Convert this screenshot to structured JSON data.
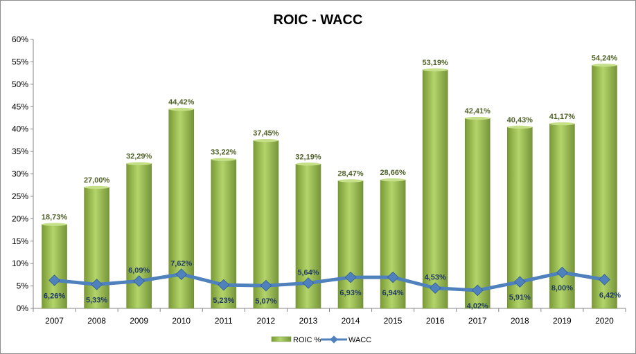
{
  "chart_data": {
    "type": "bar",
    "title": "ROIC - WACC",
    "categories": [
      "2007",
      "2008",
      "2009",
      "2010",
      "2011",
      "2012",
      "2013",
      "2014",
      "2015",
      "2016",
      "2017",
      "2018",
      "2019",
      "2020"
    ],
    "series": [
      {
        "name": "ROIC %",
        "kind": "bar",
        "values": [
          18.73,
          27.0,
          32.29,
          44.42,
          33.22,
          37.45,
          32.19,
          28.47,
          28.66,
          53.19,
          42.41,
          40.43,
          41.17,
          54.24
        ],
        "labels": [
          "18,73%",
          "27,00%",
          "32,29%",
          "44,42%",
          "33,22%",
          "37,45%",
          "32,19%",
          "28,47%",
          "28,66%",
          "53,19%",
          "42,41%",
          "40,43%",
          "41,17%",
          "54,24%"
        ],
        "color": "#9bbb59"
      },
      {
        "name": "WACC",
        "kind": "line",
        "values": [
          6.26,
          5.33,
          6.09,
          7.62,
          5.23,
          5.07,
          5.64,
          6.93,
          6.94,
          4.53,
          4.02,
          5.91,
          8.0,
          6.42
        ],
        "labels": [
          "6,26%",
          "5,33%",
          "6,09%",
          "7,62%",
          "5,23%",
          "5,07%",
          "5,64%",
          "6,93%",
          "6,94%",
          "4,53%",
          "4,02%",
          "5,91%",
          "8,00%",
          "6,42%"
        ],
        "color": "#4f81bd"
      }
    ],
    "y_ticks": [
      "0%",
      "5%",
      "10%",
      "15%",
      "20%",
      "25%",
      "30%",
      "35%",
      "40%",
      "45%",
      "50%",
      "55%",
      "60%"
    ],
    "ylim": [
      0,
      60
    ],
    "grid": false,
    "legend": "bottom"
  }
}
